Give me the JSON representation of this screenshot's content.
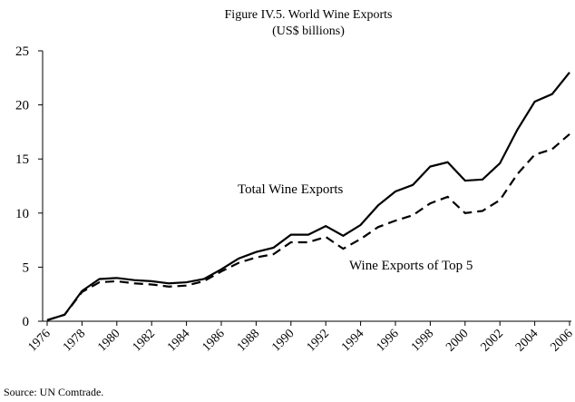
{
  "chart_data": {
    "type": "line",
    "title": "Figure IV.5. World Wine Exports",
    "subtitle": "(US$ billions)",
    "x": [
      1976,
      1977,
      1978,
      1979,
      1980,
      1981,
      1982,
      1983,
      1984,
      1985,
      1986,
      1987,
      1988,
      1989,
      1990,
      1991,
      1992,
      1993,
      1994,
      1995,
      1996,
      1997,
      1998,
      1999,
      2000,
      2001,
      2002,
      2003,
      2004,
      2005,
      2006
    ],
    "series": [
      {
        "name": "Total Wine Exports",
        "color": "#000000",
        "dash": "solid",
        "values": [
          0.1,
          0.6,
          2.8,
          3.9,
          4.0,
          3.8,
          3.7,
          3.5,
          3.6,
          3.9,
          4.8,
          5.8,
          6.4,
          6.8,
          8.0,
          8.0,
          8.8,
          7.9,
          8.9,
          10.7,
          12.0,
          12.6,
          14.3,
          14.7,
          13.0,
          13.1,
          14.6,
          17.7,
          20.3,
          21.0,
          23.0
        ]
      },
      {
        "name": "Wine Exports of Top 5",
        "color": "#000000",
        "dash": "dashed",
        "values": [
          0.1,
          0.6,
          2.7,
          3.6,
          3.7,
          3.5,
          3.4,
          3.2,
          3.3,
          3.7,
          4.6,
          5.4,
          5.9,
          6.2,
          7.3,
          7.3,
          7.8,
          6.7,
          7.6,
          8.7,
          9.3,
          9.8,
          10.9,
          11.5,
          10.0,
          10.2,
          11.2,
          13.6,
          15.4,
          15.9,
          17.3
        ]
      }
    ],
    "xlim": [
      1976,
      2006
    ],
    "xticks": [
      1976,
      1978,
      1980,
      1982,
      1984,
      1986,
      1988,
      1990,
      1992,
      1994,
      1996,
      1998,
      2000,
      2002,
      2004,
      2006
    ],
    "ylim": [
      0,
      25
    ],
    "yticks": [
      0,
      5,
      10,
      15,
      20,
      25
    ],
    "source": "Source: UN Comtrade."
  }
}
